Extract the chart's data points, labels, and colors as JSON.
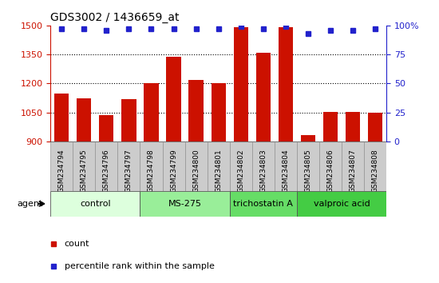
{
  "title": "GDS3002 / 1436659_at",
  "samples": [
    "GSM234794",
    "GSM234795",
    "GSM234796",
    "GSM234797",
    "GSM234798",
    "GSM234799",
    "GSM234800",
    "GSM234801",
    "GSM234802",
    "GSM234803",
    "GSM234804",
    "GSM234805",
    "GSM234806",
    "GSM234807",
    "GSM234808"
  ],
  "counts": [
    1148,
    1122,
    1038,
    1118,
    1202,
    1340,
    1218,
    1200,
    1490,
    1360,
    1490,
    935,
    1055,
    1052,
    1048
  ],
  "percentiles": [
    97,
    97,
    96,
    97,
    97,
    97,
    97,
    97,
    99,
    97,
    99,
    93,
    96,
    96,
    97
  ],
  "bar_color": "#cc1100",
  "dot_color": "#2222cc",
  "ylim_left": [
    900,
    1500
  ],
  "ylim_right": [
    0,
    100
  ],
  "yticks_left": [
    900,
    1050,
    1200,
    1350,
    1500
  ],
  "yticks_right": [
    0,
    25,
    50,
    75,
    100
  ],
  "groups": [
    {
      "label": "control",
      "start": 0,
      "end": 4,
      "color": "#ddffdd"
    },
    {
      "label": "MS-275",
      "start": 4,
      "end": 8,
      "color": "#99ee99"
    },
    {
      "label": "trichostatin A",
      "start": 8,
      "end": 11,
      "color": "#66dd66"
    },
    {
      "label": "valproic acid",
      "start": 11,
      "end": 15,
      "color": "#44cc44"
    }
  ],
  "agent_label": "agent",
  "legend_count_label": "count",
  "legend_percentile_label": "percentile rank within the sample",
  "ticklabel_bg": "#cccccc",
  "spine_color": "#000000",
  "grid_color": "#000000",
  "right_axis_color": "#2222cc",
  "left_axis_color": "#cc1100"
}
